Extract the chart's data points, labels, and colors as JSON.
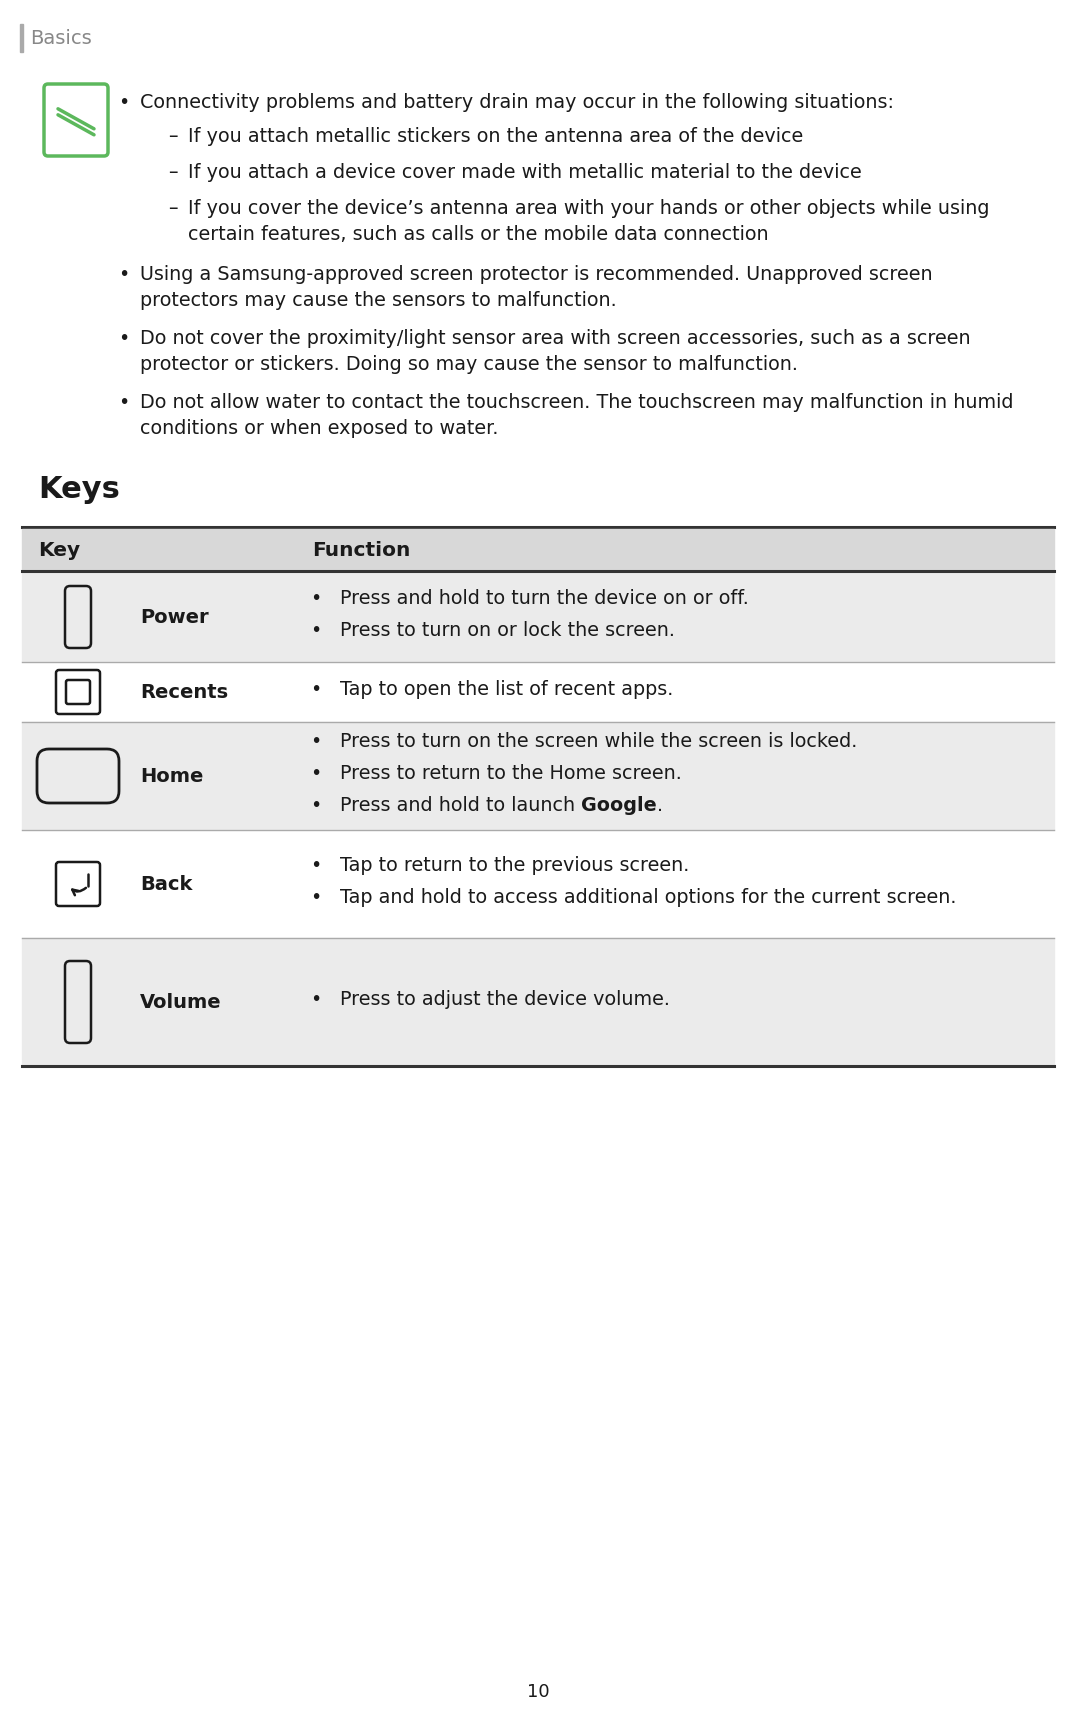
{
  "page_number": "10",
  "header_text": "Basics",
  "background_color": "#ffffff",
  "text_color": "#1a1a1a",
  "gray_color": "#888888",
  "green_icon_color": "#5cb85c",
  "bullet": "•",
  "sub_bullet": "–",
  "note_items": [
    {
      "has_icon": true,
      "text": "Connectivity problems and battery drain may occur in the following situations:",
      "sub_items": [
        "If you attach metallic stickers on the antenna area of the device",
        "If you attach a device cover made with metallic material to the device",
        "If you cover the device’s antenna area with your hands or other objects while using certain features, such as calls or the mobile data connection"
      ]
    },
    {
      "has_icon": false,
      "text": "Using a Samsung-approved screen protector is recommended. Unapproved screen protectors may cause the sensors to malfunction."
    },
    {
      "has_icon": false,
      "text": "Do not cover the proximity/light sensor area with screen accessories, such as a screen protector or stickers. Doing so may cause the sensor to malfunction."
    },
    {
      "has_icon": false,
      "text": "Do not allow water to contact the touchscreen. The touchscreen may malfunction in humid conditions or when exposed to water."
    }
  ],
  "keys_title": "Keys",
  "table_header_bg": "#d8d8d8",
  "table_row_bg_even": "#ebebeb",
  "table_row_bg_odd": "#ffffff",
  "table_col1_header": "Key",
  "table_col2_header": "Function",
  "table_rows": [
    {
      "key_name": "Power",
      "icon_type": "power",
      "functions": [
        "Press and hold to turn the device on or off.",
        "Press to turn on or lock the screen."
      ]
    },
    {
      "key_name": "Recents",
      "icon_type": "recents",
      "functions": [
        "Tap to open the list of recent apps."
      ]
    },
    {
      "key_name": "Home",
      "icon_type": "home",
      "functions": [
        "Press to turn on the screen while the screen is locked.",
        "Press to return to the Home screen.",
        "Press and hold to launch |Google|."
      ]
    },
    {
      "key_name": "Back",
      "icon_type": "back",
      "functions": [
        "Tap to return to the previous screen.",
        "Tap and hold to access additional options for the current screen."
      ]
    },
    {
      "key_name": "Volume",
      "icon_type": "volume",
      "functions": [
        "Press to adjust the device volume."
      ]
    }
  ]
}
